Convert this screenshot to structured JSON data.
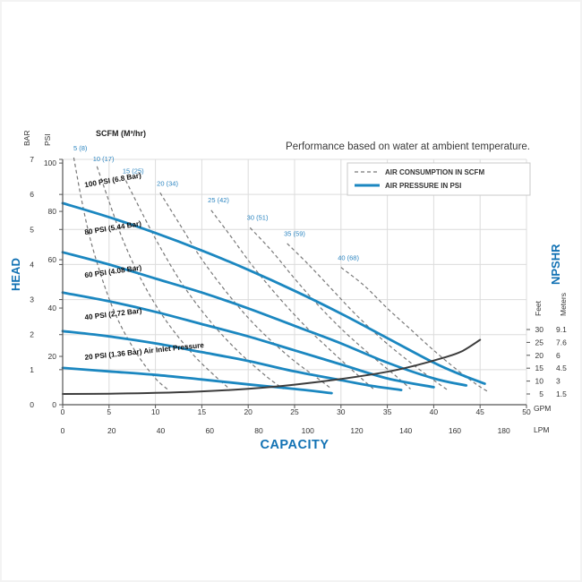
{
  "header": {
    "note": "Performance based on water at ambient temperature."
  },
  "legend": {
    "consumption": "AIR CONSUMPTION IN SCFM",
    "pressure": "AIR PRESSURE IN PSI"
  },
  "axes": {
    "bar_unit": "BAR",
    "psi_unit": "PSI",
    "head": "HEAD",
    "capacity": "CAPACITY",
    "npshr": "NPSHR",
    "scfm_title": "SCFM (M³/hr)",
    "feet": "Feet",
    "meters": "Meters",
    "gpm": "GPM",
    "lpm": "LPM"
  },
  "chart_data": {
    "type": "line",
    "title": "Pump performance curves: head vs capacity with air consumption and NPSHR",
    "x_axis_gpm": {
      "label": "GPM",
      "min": 0,
      "max": 50,
      "ticks": [
        0,
        5,
        10,
        15,
        20,
        25,
        30,
        35,
        40,
        45,
        50
      ]
    },
    "x_axis_lpm": {
      "label": "LPM",
      "ticks": [
        0,
        20,
        40,
        60,
        80,
        100,
        120,
        140,
        160,
        180
      ],
      "gpm_per_liter": 0.2642
    },
    "y_axis_bar": {
      "label": "BAR",
      "min": 0,
      "max": 7,
      "ticks": [
        0,
        1,
        2,
        3,
        4,
        5,
        6,
        7
      ]
    },
    "y_axis_psi": {
      "label": "PSI",
      "ticks": [
        0,
        20,
        40,
        60,
        80,
        100
      ],
      "bar_per_psi": 0.06895
    },
    "right_axis_npshr": {
      "feet_ticks": [
        30,
        25,
        20,
        15,
        10,
        5
      ],
      "meter_ticks": [
        "9.1",
        "7.6",
        "6",
        "4.5",
        "3",
        "1.5"
      ]
    },
    "air_pressure_curves": [
      {
        "label": "100 PSI (6.8 Bar)",
        "label_at": [
          2.4,
          6.2
        ],
        "label_rot": -10,
        "points": [
          [
            0,
            5.75
          ],
          [
            5,
            5.35
          ],
          [
            10,
            4.9
          ],
          [
            15,
            4.4
          ],
          [
            20,
            3.85
          ],
          [
            25,
            3.25
          ],
          [
            30,
            2.6
          ],
          [
            35,
            1.9
          ],
          [
            40,
            1.2
          ],
          [
            43,
            0.85
          ],
          [
            45.5,
            0.6
          ]
        ]
      },
      {
        "label": "80 PSI (5.44 Bar)",
        "label_at": [
          2.4,
          4.85
        ],
        "label_rot": -9,
        "points": [
          [
            0,
            4.35
          ],
          [
            5,
            4.0
          ],
          [
            10,
            3.6
          ],
          [
            15,
            3.2
          ],
          [
            20,
            2.75
          ],
          [
            25,
            2.25
          ],
          [
            30,
            1.75
          ],
          [
            35,
            1.2
          ],
          [
            40,
            0.75
          ],
          [
            43.5,
            0.55
          ]
        ]
      },
      {
        "label": "60 PSI (4.08 Bar)",
        "label_at": [
          2.4,
          3.62
        ],
        "label_rot": -8,
        "points": [
          [
            0,
            3.2
          ],
          [
            5,
            2.95
          ],
          [
            10,
            2.65
          ],
          [
            15,
            2.3
          ],
          [
            20,
            1.95
          ],
          [
            25,
            1.55
          ],
          [
            30,
            1.15
          ],
          [
            35,
            0.75
          ],
          [
            40,
            0.5
          ]
        ]
      },
      {
        "label": "40 PSI (2.72 Bar)",
        "label_at": [
          2.4,
          2.42
        ],
        "label_rot": -7,
        "points": [
          [
            0,
            2.1
          ],
          [
            5,
            1.95
          ],
          [
            10,
            1.75
          ],
          [
            15,
            1.5
          ],
          [
            20,
            1.25
          ],
          [
            25,
            0.95
          ],
          [
            30,
            0.7
          ],
          [
            33,
            0.55
          ],
          [
            36.5,
            0.42
          ]
        ]
      },
      {
        "label": "20 PSI (1.36 Bar) Air Inlet Pressure",
        "label_at": [
          2.4,
          1.28
        ],
        "label_rot": -6,
        "points": [
          [
            0,
            1.05
          ],
          [
            5,
            0.95
          ],
          [
            10,
            0.85
          ],
          [
            15,
            0.72
          ],
          [
            20,
            0.58
          ],
          [
            25,
            0.45
          ],
          [
            29,
            0.33
          ]
        ]
      }
    ],
    "air_consumption_curves": [
      {
        "label": "5 (8)",
        "label_at": [
          1.9,
          7.25
        ],
        "points": [
          [
            1.2,
            7.05
          ],
          [
            2,
            5.9
          ],
          [
            3,
            4.7
          ],
          [
            4.5,
            3.4
          ],
          [
            6,
            2.4
          ],
          [
            8,
            1.45
          ],
          [
            10,
            0.75
          ],
          [
            11.5,
            0.4
          ]
        ]
      },
      {
        "label": "10 (17)",
        "label_at": [
          4.4,
          6.95
        ],
        "points": [
          [
            3.7,
            6.8
          ],
          [
            5,
            5.8
          ],
          [
            6.5,
            4.7
          ],
          [
            8.5,
            3.55
          ],
          [
            11,
            2.45
          ],
          [
            14,
            1.45
          ],
          [
            16.5,
            0.8
          ],
          [
            18,
            0.45
          ]
        ]
      },
      {
        "label": "15 (25)",
        "label_at": [
          7.6,
          6.6
        ],
        "points": [
          [
            6.8,
            6.4
          ],
          [
            8.5,
            5.5
          ],
          [
            10.5,
            4.5
          ],
          [
            13,
            3.4
          ],
          [
            16,
            2.35
          ],
          [
            19,
            1.5
          ],
          [
            22,
            0.8
          ],
          [
            23.8,
            0.45
          ]
        ]
      },
      {
        "label": "20 (34)",
        "label_at": [
          11.3,
          6.25
        ],
        "points": [
          [
            10.5,
            6.05
          ],
          [
            12.5,
            5.2
          ],
          [
            15,
            4.15
          ],
          [
            18,
            3.1
          ],
          [
            21,
            2.2
          ],
          [
            24.5,
            1.35
          ],
          [
            27.5,
            0.75
          ],
          [
            29,
            0.45
          ]
        ]
      },
      {
        "label": "25 (42)",
        "label_at": [
          16.8,
          5.78
        ],
        "points": [
          [
            16,
            5.55
          ],
          [
            18,
            4.85
          ],
          [
            20.5,
            3.95
          ],
          [
            23.5,
            3.0
          ],
          [
            26.5,
            2.15
          ],
          [
            29.5,
            1.4
          ],
          [
            32,
            0.8
          ],
          [
            33.5,
            0.45
          ]
        ]
      },
      {
        "label": "30 (51)",
        "label_at": [
          21.0,
          5.28
        ],
        "points": [
          [
            20.2,
            5.05
          ],
          [
            22.5,
            4.4
          ],
          [
            25,
            3.6
          ],
          [
            27.5,
            2.85
          ],
          [
            30.5,
            2.05
          ],
          [
            33.5,
            1.35
          ],
          [
            36,
            0.8
          ],
          [
            37.5,
            0.45
          ]
        ]
      },
      {
        "label": "35 (59)",
        "label_at": [
          25.0,
          4.82
        ],
        "points": [
          [
            24.2,
            4.6
          ],
          [
            26.5,
            4.0
          ],
          [
            29,
            3.3
          ],
          [
            31.5,
            2.6
          ],
          [
            34.5,
            1.85
          ],
          [
            37.5,
            1.2
          ],
          [
            40,
            0.7
          ],
          [
            41.5,
            0.42
          ]
        ]
      },
      {
        "label": "40 (68)",
        "label_at": [
          30.8,
          4.12
        ],
        "points": [
          [
            30,
            3.92
          ],
          [
            32.5,
            3.4
          ],
          [
            35,
            2.75
          ],
          [
            37.5,
            2.15
          ],
          [
            40,
            1.55
          ],
          [
            42.5,
            1.0
          ],
          [
            44.5,
            0.6
          ],
          [
            45.8,
            0.38
          ]
        ]
      }
    ],
    "npshr_curve": {
      "units": "feet",
      "points_gpm_feet": [
        [
          0,
          5
        ],
        [
          5,
          5.1
        ],
        [
          10,
          5.4
        ],
        [
          15,
          6.0
        ],
        [
          20,
          7.0
        ],
        [
          25,
          8.6
        ],
        [
          30,
          10.8
        ],
        [
          35,
          13.6
        ],
        [
          38,
          16.0
        ],
        [
          41,
          19.0
        ],
        [
          43,
          21.5
        ],
        [
          45,
          26.0
        ]
      ]
    },
    "colors": {
      "air_pressure": "#1b87c0",
      "air_consumption": "#787878",
      "npshr": "#3c3c3c",
      "grid": "#dcdcdc",
      "axis": "#555555",
      "scfm_label_blue": "#2e86c1",
      "heading_blue": "#1272b4",
      "text_dark": "#333333"
    }
  }
}
